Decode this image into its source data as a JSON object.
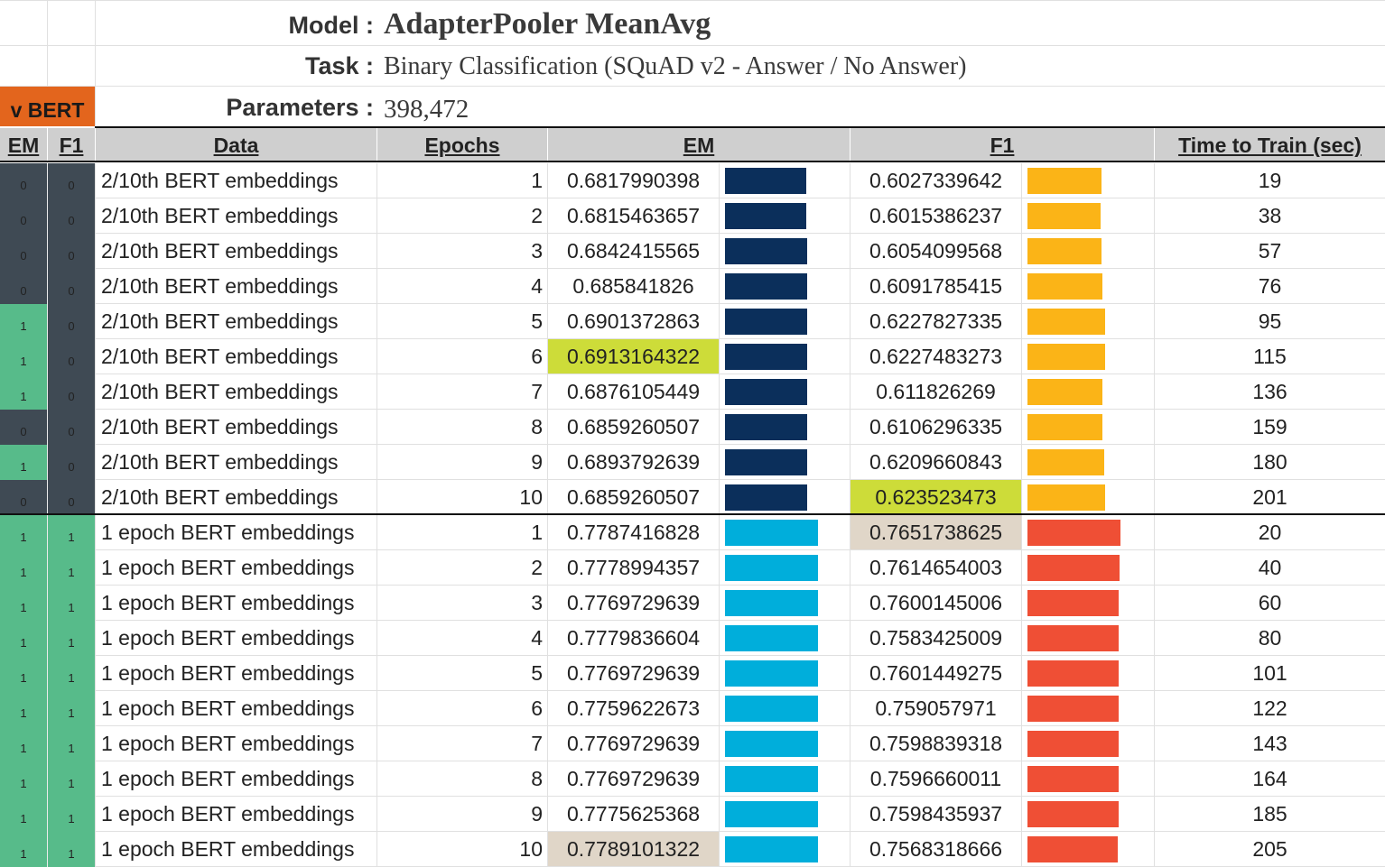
{
  "header": {
    "model_label": "Model :",
    "model_value": "AdapterPooler MeanAvg",
    "task_label": "Task :",
    "task_value": "Binary Classification (SQuAD v2 - Answer / No Answer)",
    "params_label": "Parameters :",
    "params_value": "398,472",
    "badge": "v BERT"
  },
  "columns": {
    "em_flag": "EM",
    "f1_flag": "F1",
    "data": "Data",
    "epochs": "Epochs",
    "em": "EM",
    "f1": "F1",
    "time": "Time to Train (sec)"
  },
  "colors": {
    "flag_zero": "#3f4a54",
    "flag_one": "#57bb8a",
    "badge": "#e3651d",
    "group1_em_bar": "#0b2f5b",
    "group1_f1_bar": "#fbb417",
    "group2_em_bar": "#00aedb",
    "group2_f1_bar": "#ef4f35",
    "best_highlight": "#cddc39",
    "group2_best_highlight": "#e0d6c8"
  },
  "rows": [
    {
      "em_flag": "0",
      "f1_flag": "0",
      "data": "2/10th BERT embeddings",
      "epochs": "1",
      "em": "0.6817990398",
      "f1": "0.6027339642",
      "time": "19"
    },
    {
      "em_flag": "0",
      "f1_flag": "0",
      "data": "2/10th BERT embeddings",
      "epochs": "2",
      "em": "0.6815463657",
      "f1": "0.6015386237",
      "time": "38"
    },
    {
      "em_flag": "0",
      "f1_flag": "0",
      "data": "2/10th BERT embeddings",
      "epochs": "3",
      "em": "0.6842415565",
      "f1": "0.6054099568",
      "time": "57"
    },
    {
      "em_flag": "0",
      "f1_flag": "0",
      "data": "2/10th BERT embeddings",
      "epochs": "4",
      "em": "0.685841826",
      "f1": "0.6091785415",
      "time": "76"
    },
    {
      "em_flag": "1",
      "f1_flag": "0",
      "data": "2/10th BERT embeddings",
      "epochs": "5",
      "em": "0.6901372863",
      "f1": "0.6227827335",
      "time": "95"
    },
    {
      "em_flag": "1",
      "f1_flag": "0",
      "data": "2/10th BERT embeddings",
      "epochs": "6",
      "em": "0.6913164322",
      "f1": "0.6227483273",
      "time": "115"
    },
    {
      "em_flag": "1",
      "f1_flag": "0",
      "data": "2/10th BERT embeddings",
      "epochs": "7",
      "em": "0.6876105449",
      "f1": "0.611826269",
      "time": "136"
    },
    {
      "em_flag": "0",
      "f1_flag": "0",
      "data": "2/10th BERT embeddings",
      "epochs": "8",
      "em": "0.6859260507",
      "f1": "0.6106296335",
      "time": "159"
    },
    {
      "em_flag": "1",
      "f1_flag": "0",
      "data": "2/10th BERT embeddings",
      "epochs": "9",
      "em": "0.6893792639",
      "f1": "0.6209660843",
      "time": "180"
    },
    {
      "em_flag": "0",
      "f1_flag": "0",
      "data": "2/10th BERT embeddings",
      "epochs": "10",
      "em": "0.6859260507",
      "f1": "0.623523473",
      "time": "201"
    },
    {
      "em_flag": "1",
      "f1_flag": "1",
      "data": "1 epoch BERT embeddings",
      "epochs": "1",
      "em": "0.7787416828",
      "f1": "0.7651738625",
      "time": "20"
    },
    {
      "em_flag": "1",
      "f1_flag": "1",
      "data": "1 epoch BERT embeddings",
      "epochs": "2",
      "em": "0.7778994357",
      "f1": "0.7614654003",
      "time": "40"
    },
    {
      "em_flag": "1",
      "f1_flag": "1",
      "data": "1 epoch BERT embeddings",
      "epochs": "3",
      "em": "0.7769729639",
      "f1": "0.7600145006",
      "time": "60"
    },
    {
      "em_flag": "1",
      "f1_flag": "1",
      "data": "1 epoch BERT embeddings",
      "epochs": "4",
      "em": "0.7779836604",
      "f1": "0.7583425009",
      "time": "80"
    },
    {
      "em_flag": "1",
      "f1_flag": "1",
      "data": "1 epoch BERT embeddings",
      "epochs": "5",
      "em": "0.7769729639",
      "f1": "0.7601449275",
      "time": "101"
    },
    {
      "em_flag": "1",
      "f1_flag": "1",
      "data": "1 epoch BERT embeddings",
      "epochs": "6",
      "em": "0.7759622673",
      "f1": "0.759057971",
      "time": "122"
    },
    {
      "em_flag": "1",
      "f1_flag": "1",
      "data": "1 epoch BERT embeddings",
      "epochs": "7",
      "em": "0.7769729639",
      "f1": "0.7598839318",
      "time": "143"
    },
    {
      "em_flag": "1",
      "f1_flag": "1",
      "data": "1 epoch BERT embeddings",
      "epochs": "8",
      "em": "0.7769729639",
      "f1": "0.7596660011",
      "time": "164"
    },
    {
      "em_flag": "1",
      "f1_flag": "1",
      "data": "1 epoch BERT embeddings",
      "epochs": "9",
      "em": "0.7775625368",
      "f1": "0.7598435937",
      "time": "185"
    },
    {
      "em_flag": "1",
      "f1_flag": "1",
      "data": "1 epoch BERT embeddings",
      "epochs": "10",
      "em": "0.7789101322",
      "f1": "0.7568318666",
      "time": "205"
    }
  ],
  "highlights": {
    "group1_best_em_row": 5,
    "group1_best_f1_row": 9,
    "group2_best_em_row": 19,
    "group2_best_f1_row": 10
  }
}
